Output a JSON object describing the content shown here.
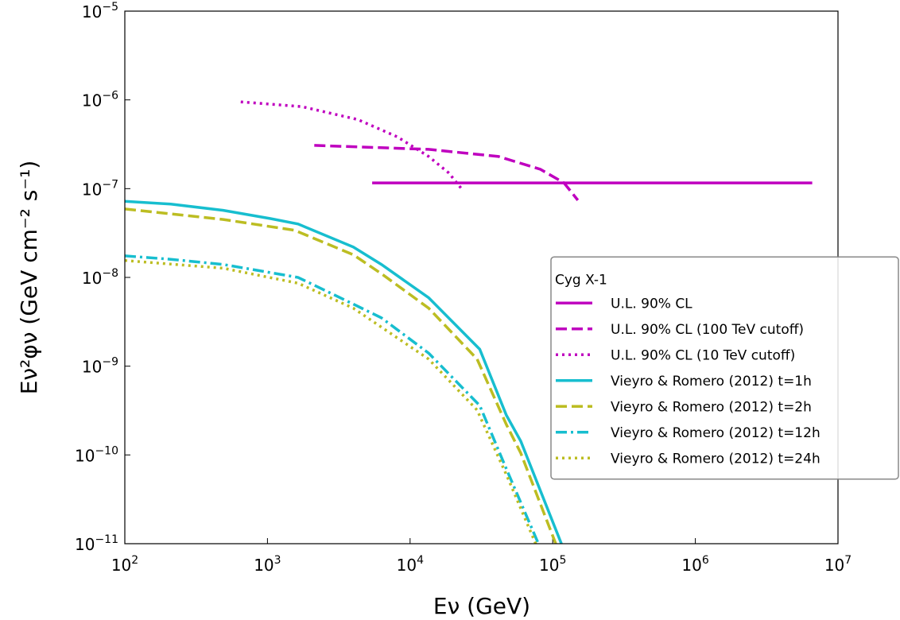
{
  "chart_data": {
    "type": "line",
    "xlabel": "Eν (GeV)",
    "ylabel": "Eν²φν (GeV cm⁻² s⁻¹)",
    "xscale": "log",
    "yscale": "log",
    "xlim": [
      100,
      10000000
    ],
    "ylim": [
      1e-11,
      1e-05
    ],
    "xticks": [
      {
        "value": 100,
        "label": "10",
        "exponent": "2"
      },
      {
        "value": 1000,
        "label": "10",
        "exponent": "3"
      },
      {
        "value": 10000,
        "label": "10",
        "exponent": "4"
      },
      {
        "value": 100000,
        "label": "10",
        "exponent": "5"
      },
      {
        "value": 1000000,
        "label": "10",
        "exponent": "6"
      },
      {
        "value": 10000000,
        "label": "10",
        "exponent": "7"
      }
    ],
    "yticks": [
      {
        "value": 1e-11,
        "label": "10",
        "exponent": "−11"
      },
      {
        "value": 1e-10,
        "label": "10",
        "exponent": "−10"
      },
      {
        "value": 1e-09,
        "label": "10",
        "exponent": "−9"
      },
      {
        "value": 1e-08,
        "label": "10",
        "exponent": "−8"
      },
      {
        "value": 1e-07,
        "label": "10",
        "exponent": "−7"
      },
      {
        "value": 1e-06,
        "label": "10",
        "exponent": "−6"
      },
      {
        "value": 1e-05,
        "label": "10",
        "exponent": "−5"
      }
    ],
    "legend_title": "Cyg X-1",
    "legend_loc": "center right",
    "series": [
      {
        "name": "U.L. 90% CL",
        "color": "#bf00bf",
        "linestyle": "solid",
        "x": [
          5420,
          6600000
        ],
        "values": [
          1.16e-07,
          1.16e-07
        ]
      },
      {
        "name": "U.L. 90% CL (100 TeV cutoff)",
        "color": "#bf00bf",
        "linestyle": "dashed",
        "x": [
          2130,
          13500,
          41700,
          82000,
          120000,
          150000
        ],
        "values": [
          3.07e-07,
          2.77e-07,
          2.3e-07,
          1.65e-07,
          1.16e-07,
          7.4e-08
        ]
      },
      {
        "name": "U.L. 90% CL (10 TeV cutoff)",
        "color": "#bf00bf",
        "linestyle": "dotted",
        "x": [
          650,
          1740,
          4300,
          8100,
          13500,
          18700,
          23500
        ],
        "values": [
          9.5e-07,
          8.4e-07,
          6e-07,
          3.85e-07,
          2.3e-07,
          1.5e-07,
          9.5e-08
        ]
      },
      {
        "name": "Vieyro & Romero (2012) t=1h",
        "color": "#17becf",
        "linestyle": "solid",
        "x": [
          100,
          210,
          490,
          1050,
          1640,
          4000,
          6300,
          13500,
          30800,
          47300,
          59700,
          115000
        ],
        "values": [
          7.2e-08,
          6.7e-08,
          5.7e-08,
          4.6e-08,
          4e-08,
          2.2e-08,
          1.4e-08,
          5.9e-09,
          1.55e-09,
          2.8e-10,
          1.43e-10,
          1e-11
        ]
      },
      {
        "name": "Vieyro & Romero (2012) t=2h",
        "color": "#bcbd22",
        "linestyle": "dashed",
        "x": [
          100,
          490,
          1550,
          4000,
          6300,
          13500,
          29500,
          47300,
          59700,
          105000
        ],
        "values": [
          5.9e-08,
          4.5e-08,
          3.4e-08,
          1.8e-08,
          1.1e-08,
          4.5e-09,
          1.2e-09,
          2.2e-10,
          1.05e-10,
          1e-11
        ]
      },
      {
        "name": "Vieyro & Romero (2012) t=12h",
        "color": "#17becf",
        "linestyle": "dashdot",
        "x": [
          100,
          210,
          490,
          1640,
          4000,
          6300,
          13500,
          30800,
          48000,
          79400
        ],
        "values": [
          1.75e-08,
          1.6e-08,
          1.4e-08,
          1e-08,
          5e-09,
          3.5e-09,
          1.4e-09,
          3.6e-10,
          6.6e-11,
          1e-11
        ]
      },
      {
        "name": "Vieyro & Romero (2012) t=24h",
        "color": "#bcbd22",
        "linestyle": "dotted",
        "x": [
          100,
          490,
          1640,
          4000,
          13500,
          29500,
          48000,
          76000
        ],
        "values": [
          1.55e-08,
          1.27e-08,
          8.6e-09,
          4.5e-09,
          1.2e-09,
          3.2e-10,
          5.7e-11,
          1e-11
        ]
      }
    ]
  }
}
